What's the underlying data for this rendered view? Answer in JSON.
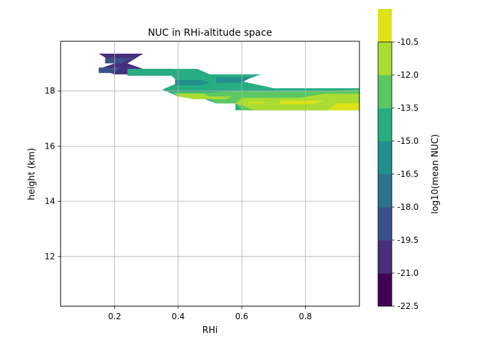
{
  "chart_data": {
    "type": "contourf",
    "title": "NUC in RHi-altitude space",
    "xlabel": "RHi",
    "ylabel": "height (km)",
    "colorbar_label": "log10(mean NUC)",
    "xlim": [
      0.03,
      0.97
    ],
    "ylim": [
      10.2,
      19.8
    ],
    "xticks": [
      0.2,
      0.4,
      0.6,
      0.8
    ],
    "xtick_labels": [
      "0.2",
      "0.4",
      "0.6",
      "0.8"
    ],
    "yticks": [
      12,
      14,
      16,
      18
    ],
    "ytick_labels": [
      "12",
      "14",
      "16",
      "18"
    ],
    "grid": true,
    "colorbar": {
      "levels": [
        -22.5,
        -21.0,
        -19.5,
        -18.0,
        -16.5,
        -15.0,
        -13.5,
        -12.0,
        -10.5
      ],
      "level_labels": [
        "-22.5",
        "-21.0",
        "-19.5",
        "-18.0",
        "-16.5",
        "-15.0",
        "-13.5",
        "-12.0",
        "-10.5"
      ],
      "colors": [
        "#440154",
        "#472f7d",
        "#3b518b",
        "#2c718e",
        "#21908d",
        "#27ad81",
        "#5cc863",
        "#aadc32",
        "#dde318"
      ]
    },
    "regions": [
      {
        "level_index": 1,
        "points": [
          [
            0.15,
            19.35
          ],
          [
            0.29,
            19.35
          ],
          [
            0.24,
            19.0
          ],
          [
            0.29,
            18.8
          ],
          [
            0.38,
            18.8
          ],
          [
            0.36,
            18.6
          ],
          [
            0.2,
            18.6
          ],
          [
            0.15,
            18.8
          ],
          [
            0.2,
            19.0
          ]
        ]
      },
      {
        "level_index": 2,
        "points": [
          [
            0.17,
            19.2
          ],
          [
            0.26,
            19.2
          ],
          [
            0.22,
            19.0
          ],
          [
            0.17,
            19.0
          ]
        ]
      },
      {
        "level_index": 2,
        "points": [
          [
            0.15,
            18.85
          ],
          [
            0.22,
            18.85
          ],
          [
            0.2,
            18.65
          ],
          [
            0.15,
            18.65
          ]
        ]
      },
      {
        "level_index": 5,
        "points": [
          [
            0.24,
            18.8
          ],
          [
            0.46,
            18.8
          ],
          [
            0.5,
            18.6
          ],
          [
            0.66,
            18.6
          ],
          [
            0.6,
            18.35
          ],
          [
            0.7,
            18.1
          ],
          [
            0.97,
            18.1
          ],
          [
            0.97,
            17.3
          ],
          [
            0.58,
            17.3
          ],
          [
            0.58,
            17.55
          ],
          [
            0.52,
            17.55
          ],
          [
            0.46,
            17.8
          ],
          [
            0.4,
            17.8
          ],
          [
            0.35,
            18.05
          ],
          [
            0.4,
            18.3
          ],
          [
            0.38,
            18.55
          ],
          [
            0.24,
            18.55
          ]
        ]
      },
      {
        "level_index": 4,
        "points": [
          [
            0.39,
            18.4
          ],
          [
            0.47,
            18.4
          ],
          [
            0.5,
            18.3
          ],
          [
            0.47,
            18.2
          ],
          [
            0.39,
            18.2
          ]
        ]
      },
      {
        "level_index": 4,
        "points": [
          [
            0.52,
            18.5
          ],
          [
            0.63,
            18.5
          ],
          [
            0.6,
            18.3
          ],
          [
            0.52,
            18.3
          ]
        ]
      },
      {
        "level_index": 6,
        "points": [
          [
            0.38,
            17.95
          ],
          [
            0.5,
            17.95
          ],
          [
            0.58,
            18.0
          ],
          [
            0.86,
            18.0
          ],
          [
            0.97,
            18.05
          ],
          [
            0.97,
            17.3
          ],
          [
            0.6,
            17.3
          ],
          [
            0.58,
            17.55
          ],
          [
            0.52,
            17.55
          ],
          [
            0.48,
            17.85
          ],
          [
            0.4,
            17.85
          ]
        ]
      },
      {
        "level_index": 7,
        "points": [
          [
            0.39,
            17.9
          ],
          [
            0.48,
            17.9
          ],
          [
            0.5,
            17.8
          ],
          [
            0.57,
            17.8
          ],
          [
            0.55,
            17.7
          ],
          [
            0.45,
            17.7
          ],
          [
            0.4,
            17.8
          ]
        ]
      },
      {
        "level_index": 7,
        "points": [
          [
            0.6,
            17.75
          ],
          [
            0.78,
            17.75
          ],
          [
            0.86,
            17.9
          ],
          [
            0.97,
            17.9
          ],
          [
            0.97,
            17.3
          ],
          [
            0.64,
            17.3
          ],
          [
            0.58,
            17.55
          ]
        ]
      },
      {
        "level_index": 8,
        "points": [
          [
            0.62,
            17.6
          ],
          [
            0.68,
            17.6
          ],
          [
            0.66,
            17.55
          ],
          [
            0.62,
            17.55
          ]
        ]
      },
      {
        "level_index": 8,
        "points": [
          [
            0.72,
            17.65
          ],
          [
            0.86,
            17.65
          ],
          [
            0.82,
            17.52
          ],
          [
            0.72,
            17.52
          ]
        ]
      },
      {
        "level_index": 8,
        "points": [
          [
            0.9,
            17.55
          ],
          [
            0.97,
            17.55
          ],
          [
            0.97,
            17.3
          ],
          [
            0.87,
            17.3
          ]
        ]
      }
    ]
  }
}
